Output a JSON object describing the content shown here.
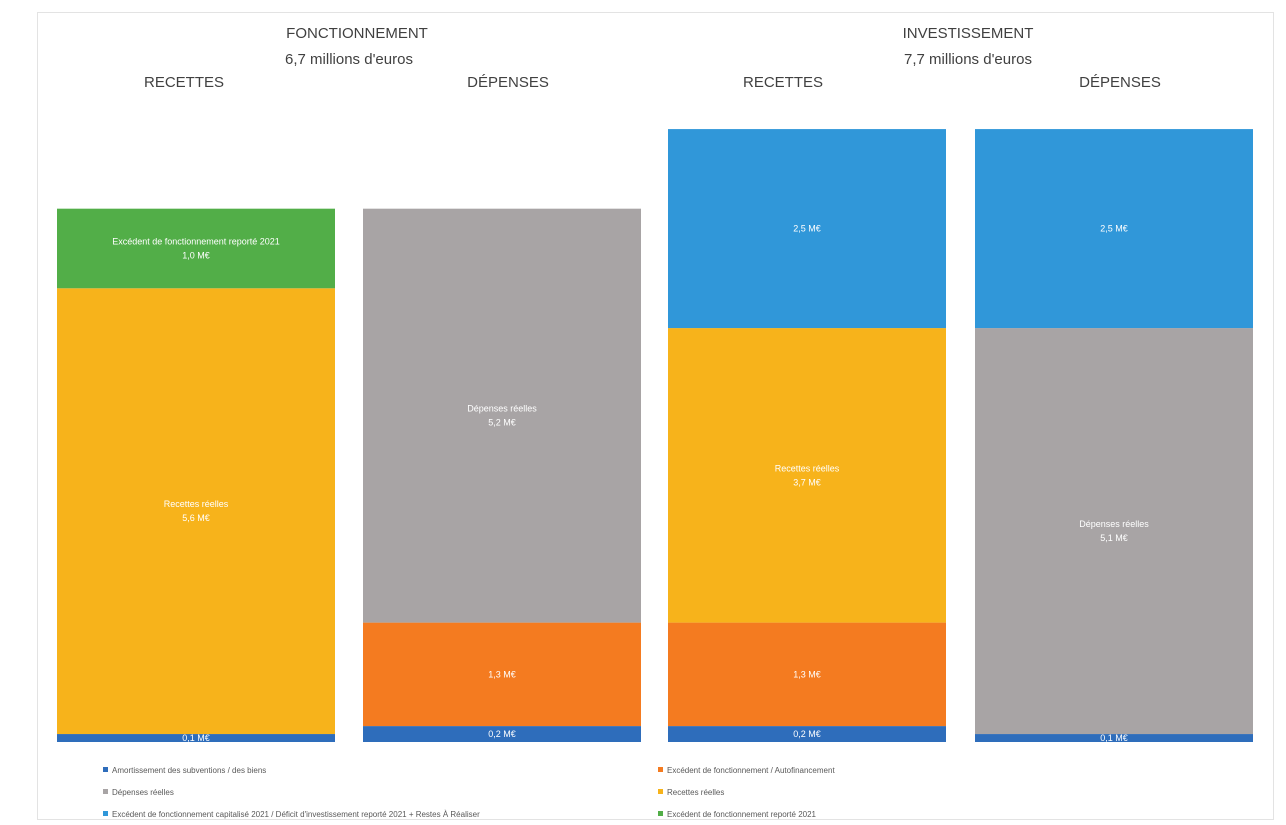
{
  "chart_data": {
    "type": "bar",
    "stacked": true,
    "sections": [
      {
        "title": "FONCTIONNEMENT",
        "subtitle": "6,7 millions d'euros"
      },
      {
        "title": "INVESTISSEMENT",
        "subtitle": "7,7 millions d'euros"
      }
    ],
    "categories": [
      "RECETTES",
      "DÉPENSES",
      "RECETTES",
      "DÉPENSES"
    ],
    "unit": "M€",
    "series": [
      {
        "name": "Amortissement des subventions / des biens",
        "color": "#2e6dbb",
        "values": [
          0.1,
          0.2,
          0.2,
          0.1
        ],
        "labels": [
          "0,1 M€",
          "0,2 M€",
          "0,2 M€",
          "0,1 M€"
        ]
      },
      {
        "name": "Excédent de fonctionnement / Autofinancement",
        "color": "#f47b20",
        "values": [
          0,
          1.3,
          1.3,
          0
        ],
        "labels": [
          "",
          "1,3 M€",
          "1,3 M€",
          ""
        ]
      },
      {
        "name": "Dépenses réelles",
        "color": "#a8a4a5",
        "values": [
          0,
          5.2,
          0,
          5.1
        ],
        "labels": [
          "",
          "Dépenses réelles\n5,2 M€",
          "",
          "Dépenses réelles\n5,1 M€"
        ]
      },
      {
        "name": "Recettes réelles",
        "color": "#f7b31b",
        "values": [
          5.6,
          0,
          3.7,
          0
        ],
        "labels": [
          "Recettes réelles\n5,6 M€",
          "",
          "Recettes réelles\n3,7 M€",
          ""
        ]
      },
      {
        "name": "Excédent de fonctionnement capitalisé 2021 / Déficit d'investissement reporté 2021 + Restes À Réaliser",
        "color": "#3097d9",
        "values": [
          0,
          0,
          2.5,
          2.5
        ],
        "labels": [
          "",
          "",
          "2,5 M€",
          "2,5 M€"
        ]
      },
      {
        "name": "Excédent de fonctionnement reporté 2021",
        "color": "#52ae48",
        "values": [
          1.0,
          0,
          0,
          0
        ],
        "labels": [
          "Excédent de fonctionnement reporté 2021\n1,0 M€",
          "",
          "",
          ""
        ]
      }
    ],
    "legend_order": [
      0,
      1,
      2,
      3,
      4,
      5
    ],
    "legend_position": "bottom",
    "ylim": [
      0,
      7.7
    ],
    "grid": false
  }
}
